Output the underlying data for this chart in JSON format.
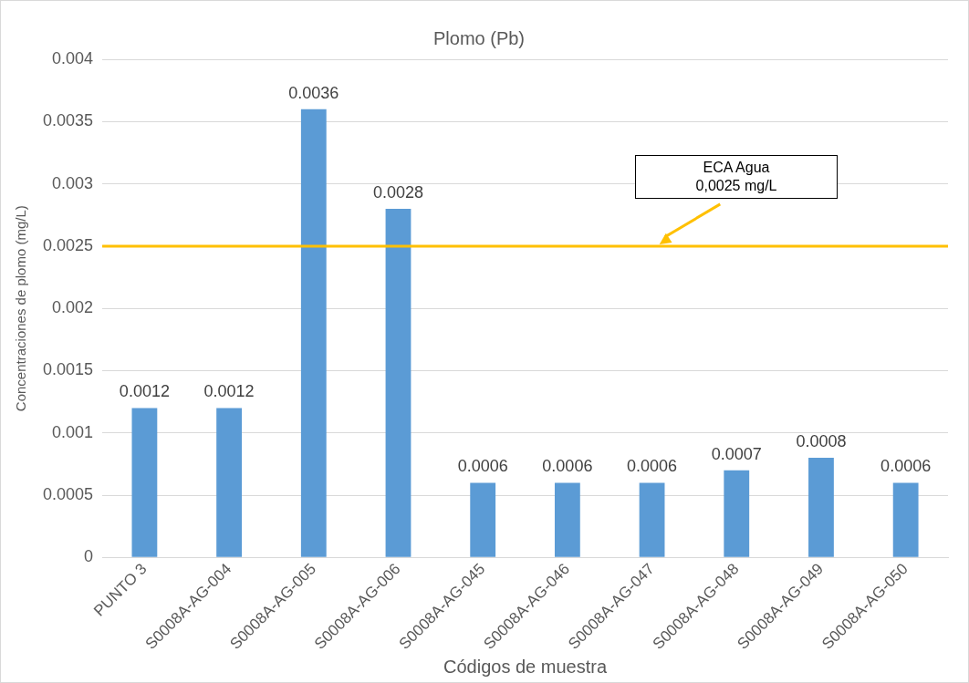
{
  "chart_data": {
    "type": "bar",
    "title": "Plomo (Pb)",
    "xlabel": "Códigos de muestra",
    "ylabel": "Concentraciones de plomo (mg/L)",
    "categories": [
      "PUNTO 3",
      "S0008A-AG-004",
      "S0008A-AG-005",
      "S0008A-AG-006",
      "S0008A-AG-045",
      "S0008A-AG-046",
      "S0008A-AG-047",
      "S0008A-AG-048",
      "S0008A-AG-049",
      "S0008A-AG-050"
    ],
    "values": [
      0.0012,
      0.0012,
      0.0036,
      0.0028,
      0.0006,
      0.0006,
      0.0006,
      0.0007,
      0.0008,
      0.0006
    ],
    "color": "#5b9bd5",
    "ylim": [
      0,
      0.004
    ],
    "yticks": [
      0,
      0.0005,
      0.001,
      0.0015,
      0.002,
      0.0025,
      0.003,
      0.0035,
      0.004
    ],
    "grid": "y",
    "legend": false,
    "data_labels": true,
    "ref_lines": [
      {
        "axis": "y",
        "value": 0.0025,
        "label": "ECA Agua\n0,0025 mg/L",
        "color": "#ffc000"
      }
    ]
  }
}
